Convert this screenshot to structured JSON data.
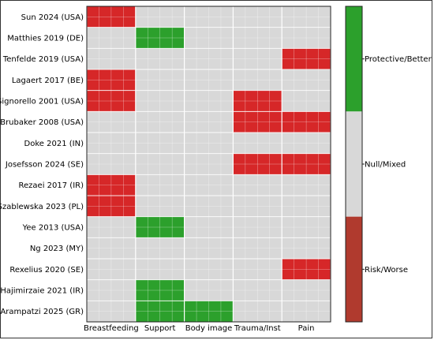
{
  "chart_data": {
    "type": "heatmap",
    "title": "",
    "xlabel": "",
    "ylabel": "",
    "columns": [
      "Breastfeeding",
      "Support",
      "Body image",
      "Trauma/Inst",
      "Pain"
    ],
    "rows": [
      "Sun 2024 (USA)",
      "Matthies 2019 (DE)",
      "Tenfelde 2019 (USA)",
      "Lagaert 2017 (BE)",
      "Signorello 2001 (USA)",
      "Brubaker 2008 (USA)",
      "Doke 2021 (IN)",
      "Josefsson 2024 (SE)",
      "Rezaei 2017 (IR)",
      "Szablewska 2023 (PL)",
      "Yee 2013 (USA)",
      "Ng 2023 (MY)",
      "Rexelius 2020 (SE)",
      "Hajimirzaie 2021 (IR)",
      "Arampatzi 2025 (GR)"
    ],
    "values": [
      [
        -1,
        0,
        0,
        0,
        0
      ],
      [
        0,
        1,
        0,
        0,
        0
      ],
      [
        0,
        0,
        0,
        0,
        -1
      ],
      [
        -1,
        0,
        0,
        0,
        0
      ],
      [
        -1,
        0,
        0,
        -1,
        0
      ],
      [
        0,
        0,
        0,
        -1,
        -1
      ],
      [
        0,
        0,
        0,
        0,
        0
      ],
      [
        0,
        0,
        0,
        -1,
        -1
      ],
      [
        -1,
        0,
        0,
        0,
        0
      ],
      [
        -1,
        0,
        0,
        0,
        0
      ],
      [
        0,
        1,
        0,
        0,
        0
      ],
      [
        0,
        0,
        0,
        0,
        0
      ],
      [
        0,
        0,
        0,
        0,
        -1
      ],
      [
        0,
        1,
        0,
        0,
        0
      ],
      [
        0,
        1,
        1,
        0,
        0
      ]
    ],
    "value_range": [
      -1,
      1
    ],
    "colorbar": {
      "labels": [
        "Protective/Better",
        "Null/Mixed",
        "Risk/Worse"
      ],
      "values": [
        1,
        0,
        -1
      ]
    },
    "colors": {
      "protective": "#2ca02c",
      "null": "#d8d8d8",
      "risk": "#d62728",
      "risk_bar": "#b03a2e",
      "grid": "#ffffff"
    },
    "grid": true
  }
}
